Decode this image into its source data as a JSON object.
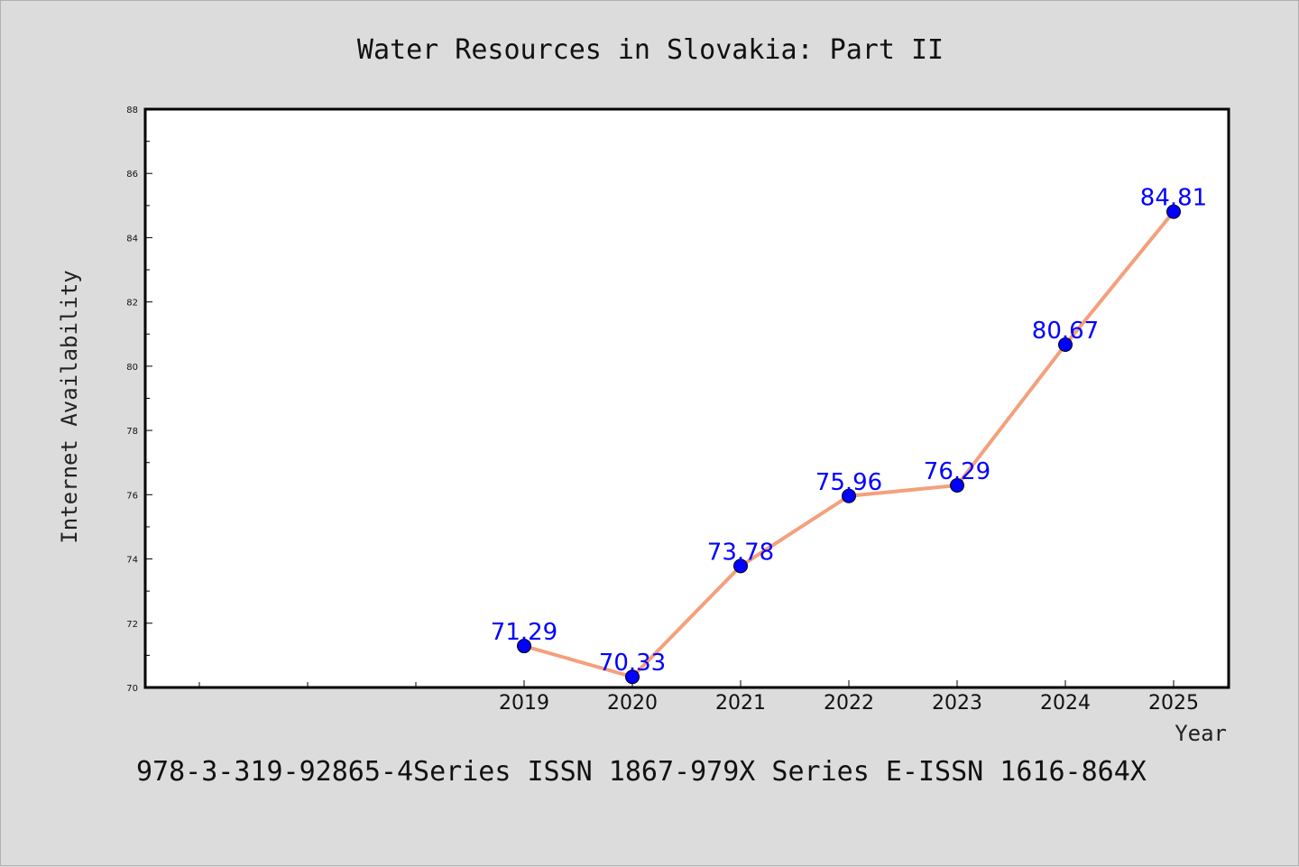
{
  "chart_data": {
    "type": "line",
    "title": "Water Resources in Slovakia: Part II",
    "xlabel": "Year",
    "ylabel": "Internet Availability",
    "categories": [
      "2019",
      "2020",
      "2021",
      "2022",
      "2023",
      "2024",
      "2025"
    ],
    "series": [
      {
        "values": [
          71.29,
          70.33,
          73.78,
          75.96,
          76.29,
          80.67,
          84.81
        ],
        "line_color": "#f4a07c",
        "marker_color": "#0000ff",
        "label_color": "#0000ff"
      }
    ],
    "data_labels": [
      "71.29",
      "70.33",
      "73.78",
      "75.96",
      "76.29",
      "80.67",
      "84.81"
    ],
    "ylim": [
      70,
      88
    ],
    "yticks": [
      "70",
      "72",
      "74",
      "76",
      "78",
      "80",
      "82",
      "84",
      "86",
      "88"
    ],
    "grid": false,
    "legend": "none"
  },
  "footer": {
    "text": "978-3-319-92865-4Series ISSN 1867-979X Series E-ISSN 1616-864X"
  }
}
